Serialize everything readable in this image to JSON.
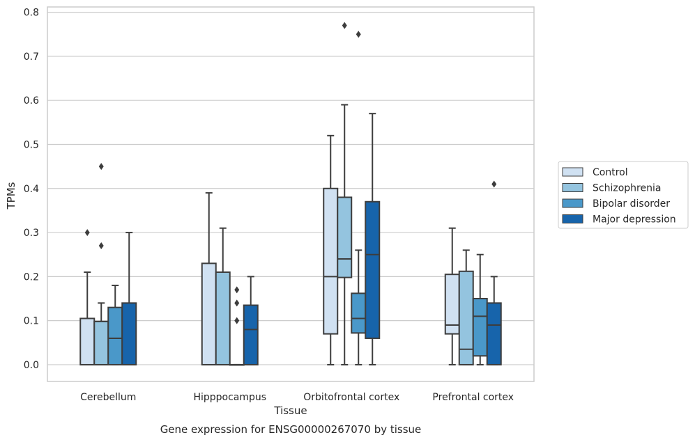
{
  "chart_data": {
    "type": "boxplot",
    "title": "Gene expression for ENSG00000267070 by tissue",
    "xlabel": "Tissue",
    "ylabel": "TPMs",
    "ylim": [
      -0.038,
      0.812
    ],
    "yticks": [
      "0.0",
      "0.1",
      "0.2",
      "0.3",
      "0.4",
      "0.5",
      "0.6",
      "0.7",
      "0.8"
    ],
    "grid": true,
    "legend_position": "right",
    "categories": [
      "Cerebellum",
      "Hipppocampus",
      "Orbitofrontal cortex",
      "Prefrontal cortex"
    ],
    "series": [
      {
        "name": "Control",
        "color": "#d0e1f2",
        "boxes": [
          {
            "min": 0.0,
            "q1": 0.0,
            "median": 0.0,
            "q3": 0.105,
            "max": 0.21,
            "outliers": [
              0.3
            ]
          },
          {
            "min": 0.0,
            "q1": 0.0,
            "median": 0.0,
            "q3": 0.23,
            "max": 0.39,
            "outliers": []
          },
          {
            "min": 0.0,
            "q1": 0.07,
            "median": 0.2,
            "q3": 0.4,
            "max": 0.52,
            "outliers": []
          },
          {
            "min": 0.0,
            "q1": 0.07,
            "median": 0.09,
            "q3": 0.205,
            "max": 0.31,
            "outliers": []
          }
        ]
      },
      {
        "name": "Schizophrenia",
        "color": "#94c4df",
        "boxes": [
          {
            "min": 0.0,
            "q1": 0.0,
            "median": 0.0,
            "q3": 0.098,
            "max": 0.14,
            "outliers": [
              0.27,
              0.45
            ]
          },
          {
            "min": 0.0,
            "q1": 0.0,
            "median": 0.0,
            "q3": 0.21,
            "max": 0.31,
            "outliers": []
          },
          {
            "min": 0.0,
            "q1": 0.198,
            "median": 0.24,
            "q3": 0.38,
            "max": 0.59,
            "outliers": [
              0.77
            ]
          },
          {
            "min": 0.0,
            "q1": 0.0,
            "median": 0.035,
            "q3": 0.212,
            "max": 0.26,
            "outliers": []
          }
        ]
      },
      {
        "name": "Bipolar disorder",
        "color": "#4a98c9",
        "boxes": [
          {
            "min": 0.0,
            "q1": 0.0,
            "median": 0.06,
            "q3": 0.13,
            "max": 0.18,
            "outliers": []
          },
          {
            "min": 0.0,
            "q1": 0.0,
            "median": 0.0,
            "q3": 0.0,
            "max": 0.0,
            "outliers": [
              0.1,
              0.14,
              0.17
            ]
          },
          {
            "min": 0.0,
            "q1": 0.072,
            "median": 0.105,
            "q3": 0.162,
            "max": 0.26,
            "outliers": [
              0.75
            ]
          },
          {
            "min": 0.0,
            "q1": 0.02,
            "median": 0.11,
            "q3": 0.15,
            "max": 0.25,
            "outliers": []
          }
        ]
      },
      {
        "name": "Major depression",
        "color": "#1764ab",
        "boxes": [
          {
            "min": 0.0,
            "q1": 0.0,
            "median": 0.0,
            "q3": 0.14,
            "max": 0.3,
            "outliers": []
          },
          {
            "min": 0.0,
            "q1": 0.0,
            "median": 0.08,
            "q3": 0.135,
            "max": 0.2,
            "outliers": []
          },
          {
            "min": 0.0,
            "q1": 0.06,
            "median": 0.25,
            "q3": 0.37,
            "max": 0.57,
            "outliers": []
          },
          {
            "min": 0.0,
            "q1": 0.0,
            "median": 0.09,
            "q3": 0.14,
            "max": 0.2,
            "outliers": [
              0.41
            ]
          }
        ]
      }
    ]
  }
}
